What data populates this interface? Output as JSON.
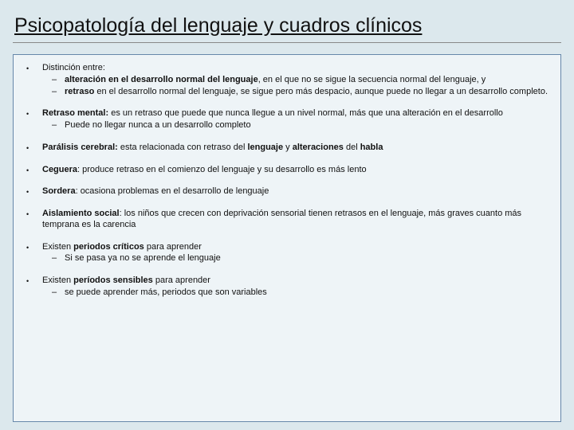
{
  "colors": {
    "background": "#dce8ed",
    "content_bg": "#eef4f7",
    "content_border": "#6688aa",
    "text": "#111111"
  },
  "typography": {
    "title_fontsize": 25,
    "body_fontsize": 11,
    "font_family": "Arial"
  },
  "title": "Psicopatología del lenguaje y cuadros clínicos",
  "bullets": [
    {
      "text": "Distinción entre:",
      "sub": [
        {
          "html": "<b>alteración en el desarrollo normal del lenguaje</b>, en el que no se sigue la secuencia normal del lenguaje, y"
        },
        {
          "html": "<b>retraso</b> en el desarrollo normal del lenguaje, se sigue pero más despacio, aunque puede no llegar a un desarrollo completo."
        }
      ]
    },
    {
      "html": "<b>Retraso mental:</b> es un retraso que puede que nunca llegue a un nivel normal, más que una alteración en el desarrollo",
      "sub": [
        {
          "text": "Puede no llegar nunca a un desarrollo completo"
        }
      ]
    },
    {
      "html": "<b>Parálisis cerebral:</b> esta relacionada con retraso del <b>lenguaje</b> y <b>alteraciones</b> del <b>habla</b>"
    },
    {
      "html": "<b>Ceguera</b>: produce retraso en el comienzo del lenguaje y su desarrollo es más lento"
    },
    {
      "html": "<b>Sordera</b>: ocasiona problemas en el desarrollo de lenguaje"
    },
    {
      "html": "<b>Aislamiento social</b>: los niños que crecen con deprivación sensorial tienen retrasos en el lenguaje, más graves cuanto más temprana es la carencia"
    },
    {
      "html": "Existen <b>periodos críticos</b> para aprender",
      "sub": [
        {
          "text": "Si se pasa ya no se aprende el lenguaje"
        }
      ]
    },
    {
      "html": "Existen <b>períodos sensibles</b> para aprender",
      "sub": [
        {
          "text": "se puede aprender más, periodos que son variables"
        }
      ]
    }
  ]
}
